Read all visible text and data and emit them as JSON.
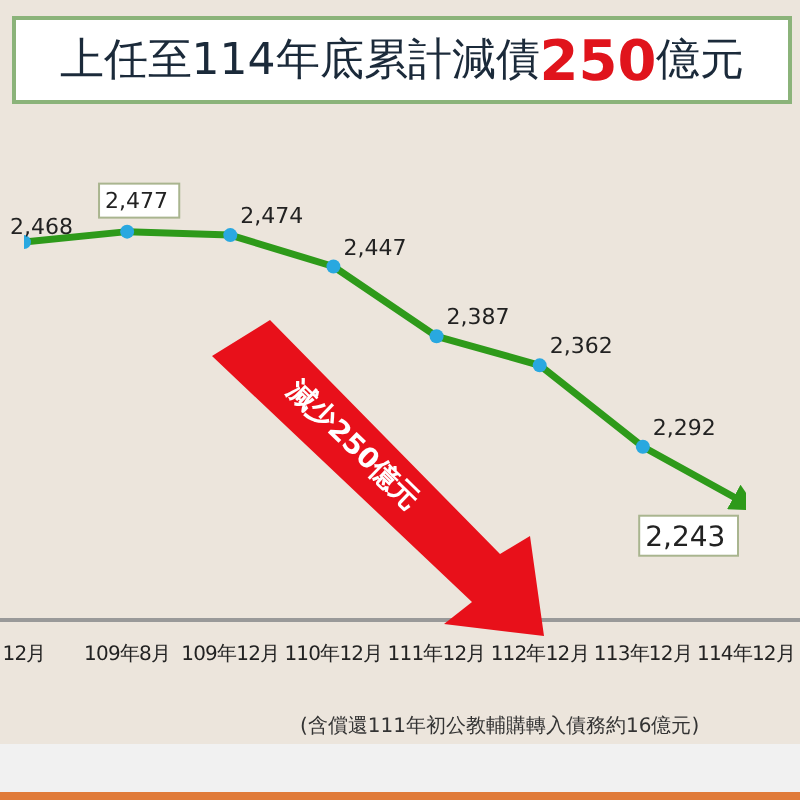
{
  "chart_data": {
    "type": "line",
    "title": "上任至114年底累計減債250億元",
    "categories": [
      "12月",
      "109年8月",
      "109年12月",
      "110年12月",
      "111年12月",
      "112年12月",
      "113年12月",
      "114年12月"
    ],
    "series": [
      {
        "color": "#2e9a1a",
        "values": [
          2468,
          2477,
          2474,
          2447,
          2387,
          2362,
          2292,
          2243
        ],
        "value_labels": [
          "2,468",
          "2,477",
          "2,474",
          "2,447",
          "2,387",
          "2,362",
          "2,292",
          "2,243"
        ]
      }
    ],
    "marker": "circle",
    "annotations": [
      "減少250億元",
      "(含償還111年初公教輔購轉入債務約16億元)"
    ]
  }
}
